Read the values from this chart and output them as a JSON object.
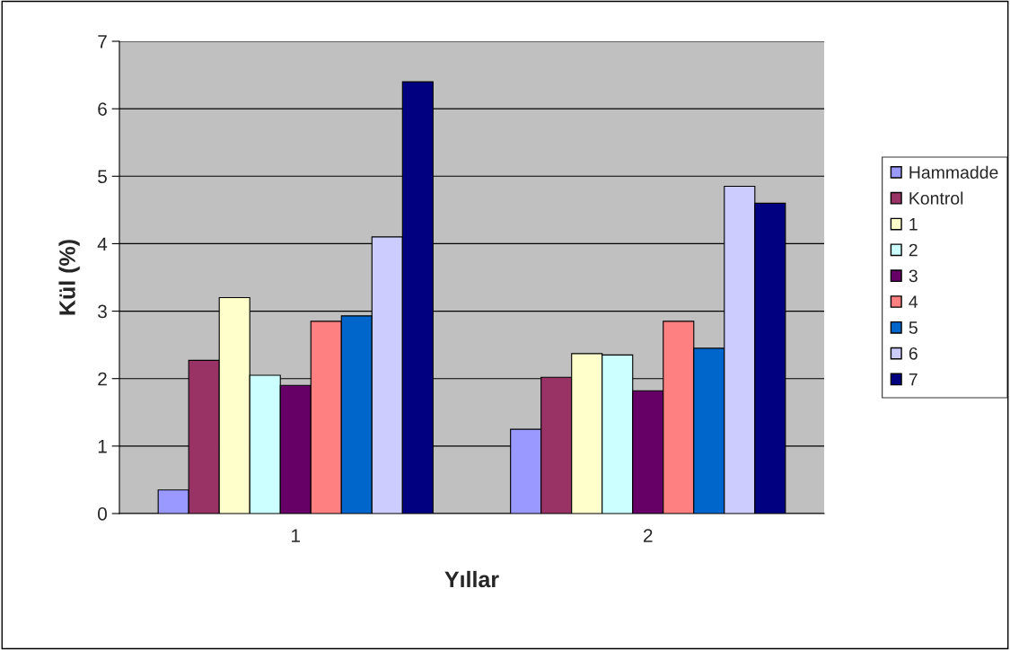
{
  "chart_data": {
    "type": "bar",
    "xlabel": "Yıllar",
    "ylabel": "Kül (%)",
    "categories": [
      "1",
      "2"
    ],
    "series": [
      {
        "name": "Hammadde",
        "color": "#9999ff",
        "values": [
          0.35,
          1.25
        ]
      },
      {
        "name": "Kontrol",
        "color": "#993366",
        "values": [
          2.27,
          2.02
        ]
      },
      {
        "name": "1",
        "color": "#ffffcc",
        "values": [
          3.2,
          2.37
        ]
      },
      {
        "name": "2",
        "color": "#ccffff",
        "values": [
          2.05,
          2.35
        ]
      },
      {
        "name": "3",
        "color": "#660066",
        "values": [
          1.9,
          1.82
        ]
      },
      {
        "name": "4",
        "color": "#ff8080",
        "values": [
          2.85,
          2.85
        ]
      },
      {
        "name": "5",
        "color": "#0066cc",
        "values": [
          2.93,
          2.45
        ]
      },
      {
        "name": "6",
        "color": "#ccccff",
        "values": [
          4.1,
          4.85
        ]
      },
      {
        "name": "7",
        "color": "#000080",
        "values": [
          6.4,
          4.6
        ]
      }
    ],
    "ylim": [
      0,
      7
    ],
    "yticks": [
      0,
      1,
      2,
      3,
      4,
      5,
      6,
      7
    ],
    "grid": "y",
    "legend": "right"
  }
}
